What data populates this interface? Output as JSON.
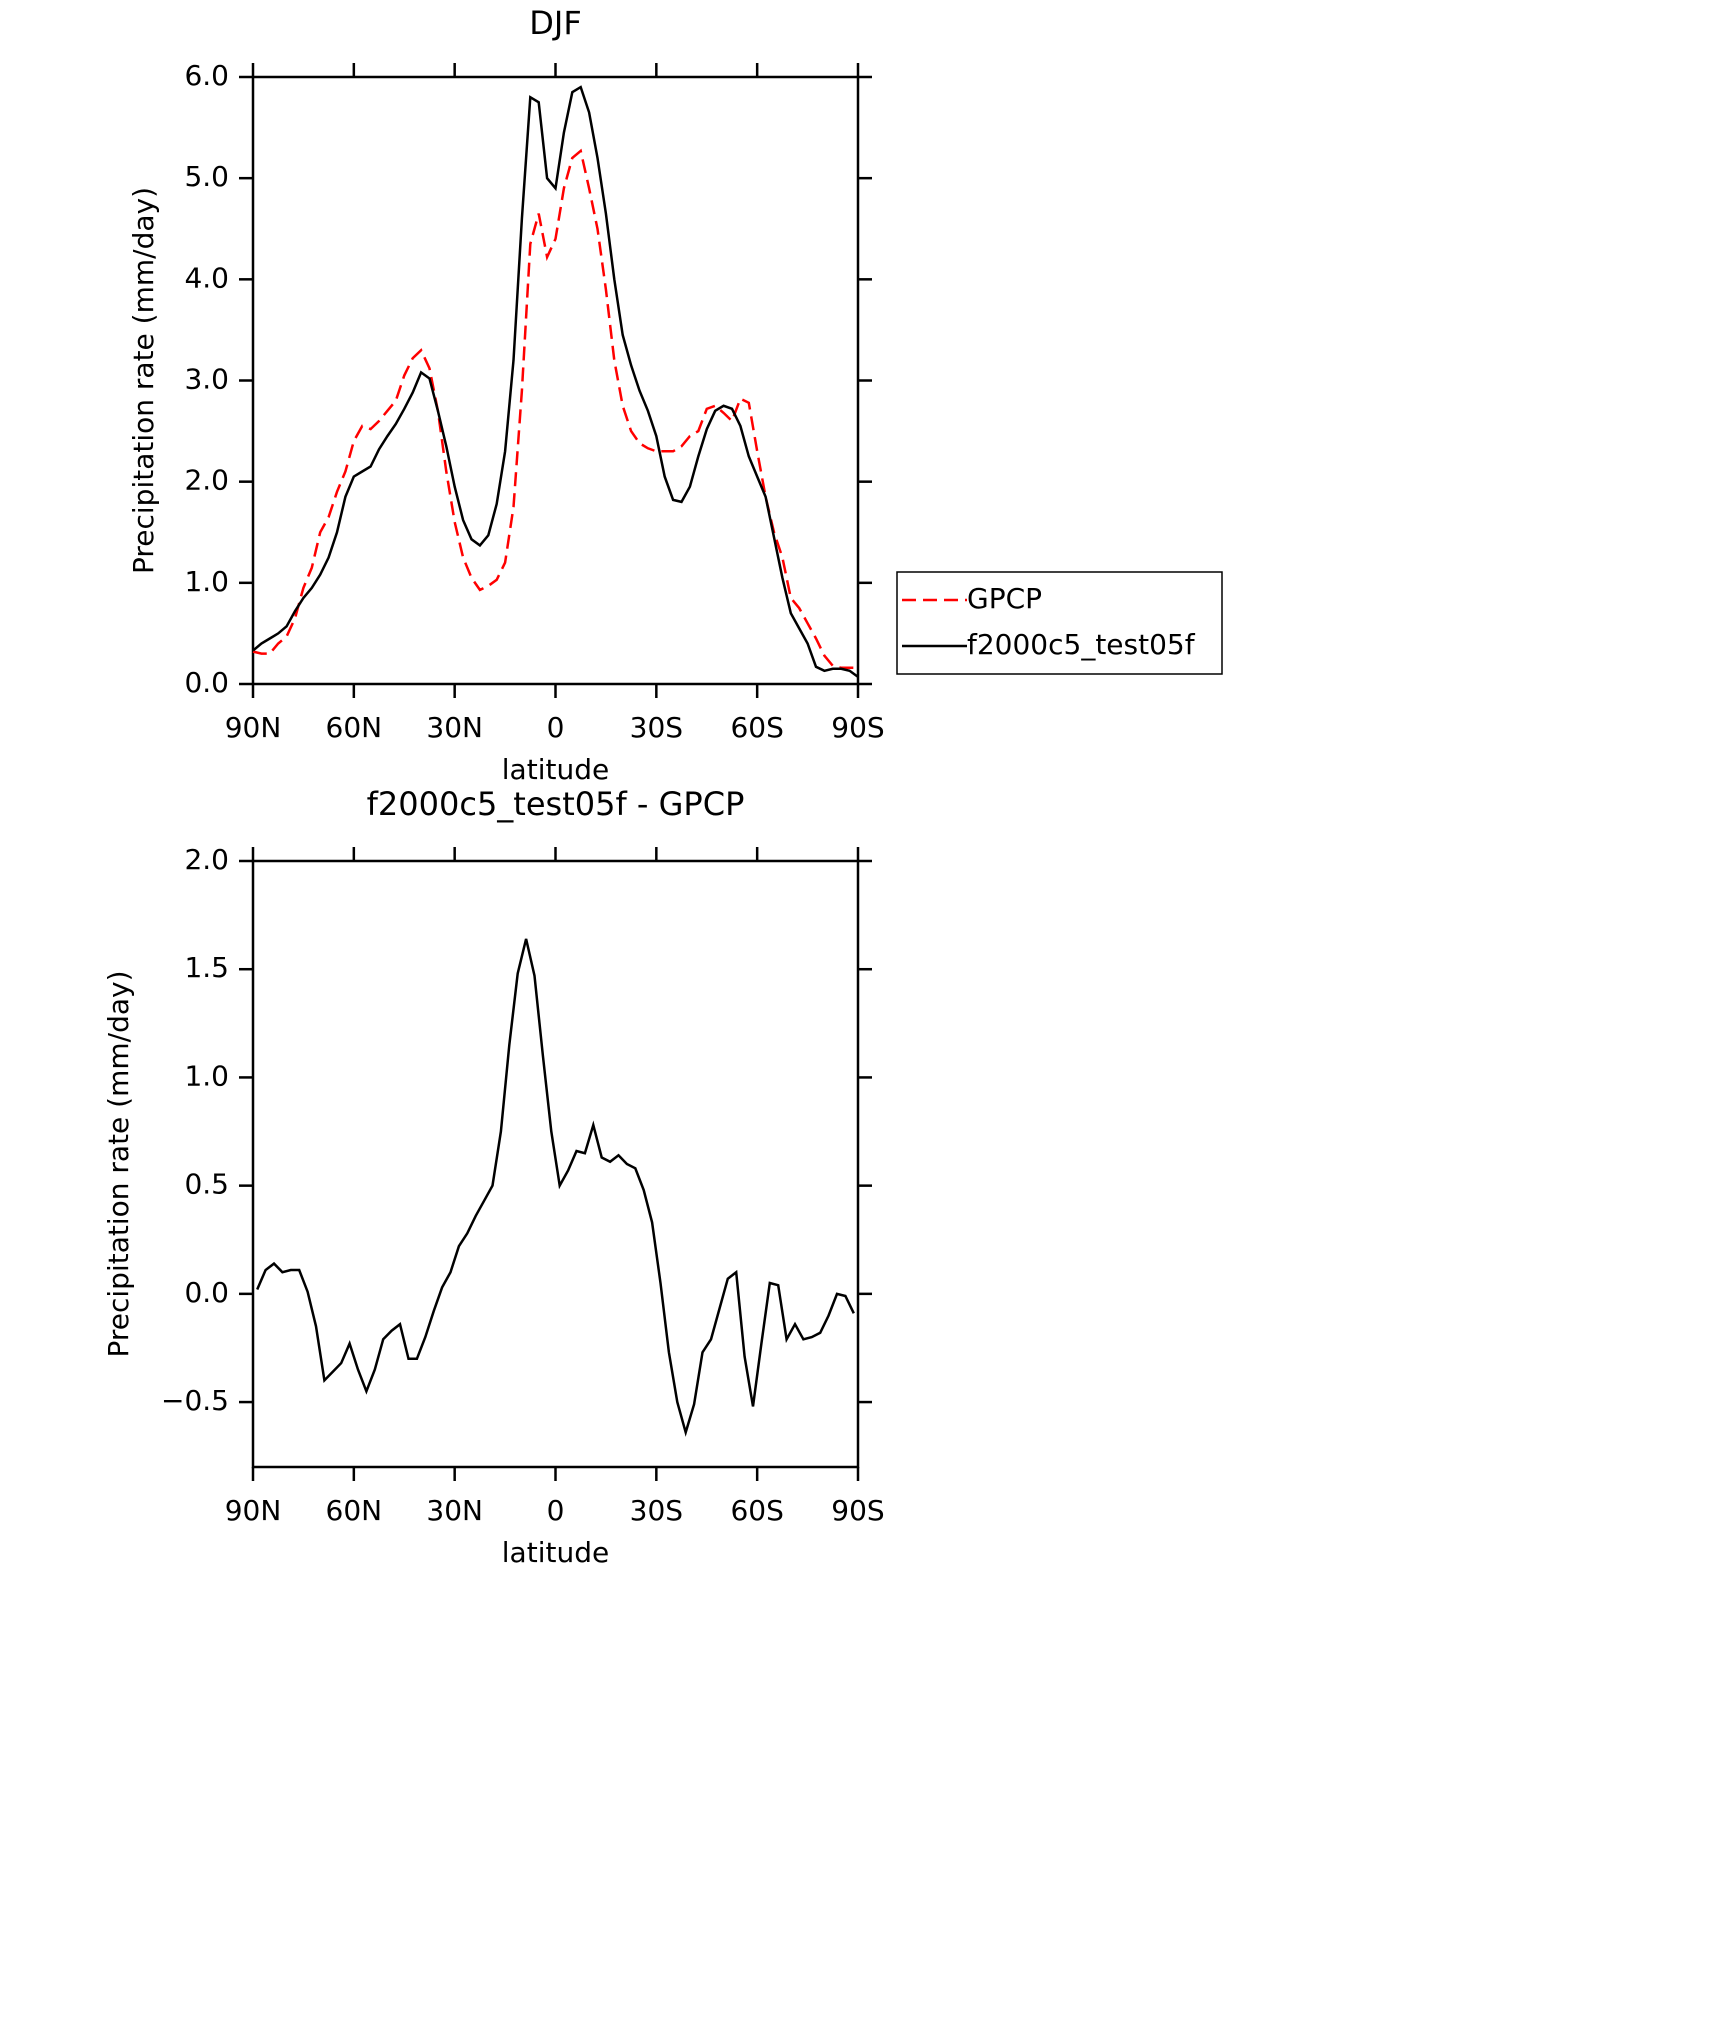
{
  "chart_data": [
    {
      "type": "line",
      "title": "DJF",
      "xlabel": "latitude",
      "ylabel": "Precipitation rate (mm/day)",
      "x": [
        90,
        87.5,
        85,
        82.5,
        80,
        77.5,
        75,
        72.5,
        70,
        67.5,
        65,
        62.5,
        60,
        57.5,
        55,
        52.5,
        50,
        47.5,
        45,
        42.5,
        40,
        37.5,
        35,
        32.5,
        30,
        27.5,
        25,
        22.5,
        20,
        17.5,
        15,
        12.5,
        10,
        7.5,
        5,
        2.5,
        0,
        -2.5,
        -5,
        -7.5,
        -10,
        -12.5,
        -15,
        -17.5,
        -20,
        -22.5,
        -25,
        -27.5,
        -30,
        -32.5,
        -35,
        -37.5,
        -40,
        -42.5,
        -45,
        -47.5,
        -50,
        -52.5,
        -55,
        -57.5,
        -60,
        -62.5,
        -65,
        -67.5,
        -70,
        -72.5,
        -75,
        -77.5,
        -80,
        -82.5,
        -85,
        -87.5,
        -90
      ],
      "series": [
        {
          "name": "GPCP",
          "color": "#ff0000",
          "dash": true,
          "values": [
            0.32,
            0.3,
            0.3,
            0.4,
            0.47,
            0.65,
            0.95,
            1.15,
            1.5,
            1.65,
            1.9,
            2.1,
            2.4,
            2.55,
            2.52,
            2.6,
            2.7,
            2.8,
            3.05,
            3.22,
            3.3,
            3.12,
            2.7,
            2.1,
            1.6,
            1.25,
            1.05,
            0.93,
            0.97,
            1.03,
            1.2,
            1.75,
            2.9,
            4.35,
            4.65,
            4.22,
            4.4,
            4.9,
            5.2,
            5.27,
            4.9,
            4.5,
            3.9,
            3.2,
            2.75,
            2.5,
            2.38,
            2.33,
            2.3,
            2.3,
            2.3,
            2.35,
            2.45,
            2.5,
            2.72,
            2.75,
            2.68,
            2.6,
            2.82,
            2.78,
            2.3,
            1.85,
            1.5,
            1.25,
            0.85,
            0.75,
            0.6,
            0.45,
            0.28,
            0.18,
            0.16,
            0.16,
            0.16
          ]
        },
        {
          "name": "f2000c5_test05f",
          "color": "#000000",
          "dash": false,
          "values": [
            0.33,
            0.4,
            0.45,
            0.5,
            0.57,
            0.72,
            0.85,
            0.95,
            1.08,
            1.25,
            1.5,
            1.85,
            2.05,
            2.1,
            2.15,
            2.32,
            2.45,
            2.57,
            2.72,
            2.88,
            3.08,
            3.02,
            2.7,
            2.35,
            1.95,
            1.62,
            1.43,
            1.37,
            1.47,
            1.78,
            2.3,
            3.2,
            4.6,
            5.8,
            5.75,
            5.0,
            4.9,
            5.45,
            5.85,
            5.9,
            5.65,
            5.2,
            4.65,
            4.0,
            3.45,
            3.15,
            2.9,
            2.7,
            2.45,
            2.05,
            1.82,
            1.8,
            1.95,
            2.25,
            2.52,
            2.7,
            2.75,
            2.72,
            2.55,
            2.25,
            2.05,
            1.85,
            1.45,
            1.05,
            0.7,
            0.55,
            0.4,
            0.17,
            0.13,
            0.15,
            0.15,
            0.13,
            0.07
          ]
        }
      ],
      "xlim": [
        90,
        -90
      ],
      "xticks": [
        {
          "value": 90,
          "label": "90N"
        },
        {
          "value": 60,
          "label": "60N"
        },
        {
          "value": 30,
          "label": "30N"
        },
        0,
        {
          "value": -30,
          "label": "30S"
        },
        {
          "value": -60,
          "label": "60S"
        },
        {
          "value": -90,
          "label": "90S"
        }
      ],
      "ylim": [
        0,
        6
      ],
      "yticks": [
        {
          "value": 0,
          "label": "0.0"
        },
        {
          "value": 1,
          "label": "1.0"
        },
        {
          "value": 2,
          "label": "2.0"
        },
        {
          "value": 3,
          "label": "3.0"
        },
        {
          "value": 4,
          "label": "4.0"
        },
        {
          "value": 5,
          "label": "5.0"
        },
        {
          "value": 6,
          "label": "6.0"
        }
      ],
      "legend": "right"
    },
    {
      "type": "line",
      "title": "f2000c5_test05f - GPCP",
      "xlabel": "latitude",
      "ylabel": "Precipitation rate (mm/day)",
      "x": [
        88.75,
        86.25,
        83.75,
        81.25,
        78.75,
        76.25,
        73.75,
        71.25,
        68.75,
        66.25,
        63.75,
        61.25,
        58.75,
        56.25,
        53.75,
        51.25,
        48.75,
        46.25,
        43.75,
        41.25,
        38.75,
        36.25,
        33.75,
        31.25,
        28.75,
        26.25,
        23.75,
        21.25,
        18.75,
        16.25,
        13.75,
        11.25,
        8.75,
        6.25,
        3.75,
        1.25,
        -1.25,
        -3.75,
        -6.25,
        -8.75,
        -11.25,
        -13.75,
        -16.25,
        -18.75,
        -21.25,
        -23.75,
        -26.25,
        -28.75,
        -31.25,
        -33.75,
        -36.25,
        -38.75,
        -41.25,
        -43.75,
        -46.25,
        -48.75,
        -51.25,
        -53.75,
        -56.25,
        -58.75,
        -61.25,
        -63.75,
        -66.25,
        -68.75,
        -71.25,
        -73.75,
        -76.25,
        -78.75,
        -81.25,
        -83.75,
        -86.25,
        -88.75
      ],
      "color": "#000000",
      "values": [
        0.02,
        0.11,
        0.14,
        0.1,
        0.11,
        0.11,
        0.01,
        -0.15,
        -0.4,
        -0.36,
        -0.32,
        -0.23,
        -0.35,
        -0.45,
        -0.35,
        -0.21,
        -0.17,
        -0.14,
        -0.3,
        -0.3,
        -0.2,
        -0.08,
        0.03,
        0.1,
        0.22,
        0.28,
        0.36,
        0.43,
        0.5,
        0.75,
        1.15,
        1.48,
        1.64,
        1.47,
        1.1,
        0.75,
        0.5,
        0.57,
        0.66,
        0.65,
        0.78,
        0.63,
        0.61,
        0.64,
        0.6,
        0.58,
        0.48,
        0.33,
        0.05,
        -0.27,
        -0.5,
        -0.64,
        -0.51,
        -0.27,
        -0.21,
        -0.07,
        0.07,
        0.1,
        -0.29,
        -0.52,
        -0.23,
        0.05,
        0.04,
        -0.21,
        -0.14,
        -0.21,
        -0.2,
        -0.18,
        -0.1,
        0.0,
        -0.01,
        -0.09
      ],
      "xlim": [
        90,
        -90
      ],
      "xticks": [
        {
          "value": 90,
          "label": "90N"
        },
        {
          "value": 60,
          "label": "60N"
        },
        {
          "value": 30,
          "label": "30N"
        },
        0,
        {
          "value": -30,
          "label": "30S"
        },
        {
          "value": -60,
          "label": "60S"
        },
        {
          "value": -90,
          "label": "90S"
        }
      ],
      "ylim": [
        -0.8,
        2.0
      ],
      "yticks": [
        {
          "value": -0.5,
          "label": "−0.5"
        },
        {
          "value": 0,
          "label": "0.0"
        },
        {
          "value": 0.5,
          "label": "0.5"
        },
        {
          "value": 1,
          "label": "1.0"
        },
        {
          "value": 1.5,
          "label": "1.5"
        },
        {
          "value": 2,
          "label": "2.0"
        }
      ]
    }
  ]
}
